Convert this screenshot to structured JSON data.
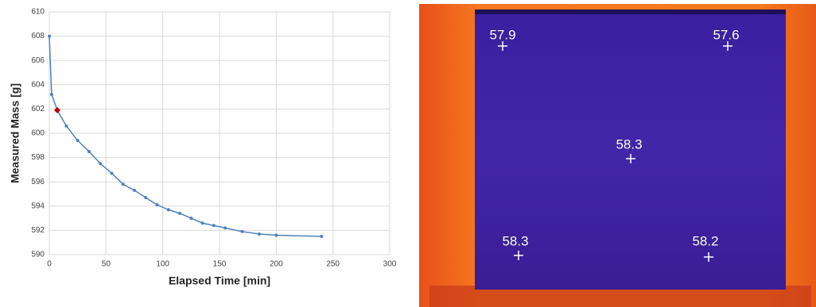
{
  "chart_data": {
    "type": "line",
    "x_label": "Elapsed Time [min]",
    "y_label": "Measured Mass [g]",
    "x": [
      0,
      2,
      7,
      15,
      25,
      35,
      45,
      55,
      65,
      75,
      85,
      95,
      105,
      115,
      125,
      135,
      145,
      155,
      170,
      185,
      200,
      240
    ],
    "series": [
      {
        "color": "#4f81bd",
        "values": [
          608,
          603.2,
          601.9,
          600.6,
          599.4,
          598.5,
          597.5,
          596.7,
          595.8,
          595.3,
          594.7,
          594.1,
          593.7,
          593.4,
          593.0,
          592.6,
          592.4,
          592.2,
          591.9,
          591.7,
          591.6,
          591.5
        ]
      }
    ],
    "highlight_point": {
      "x": 7,
      "y": 601.9,
      "color": "#c00000"
    },
    "xlim": [
      0,
      300
    ],
    "xticks": [
      0,
      50,
      100,
      150,
      200,
      250,
      300
    ],
    "ylim": [
      590,
      610
    ],
    "yticks": [
      590,
      592,
      594,
      596,
      598,
      600,
      602,
      604,
      606,
      608,
      610
    ],
    "grid": true
  },
  "thermal_image": {
    "spots": [
      57.9,
      57.6,
      58.3,
      58.3,
      58.2
    ]
  }
}
